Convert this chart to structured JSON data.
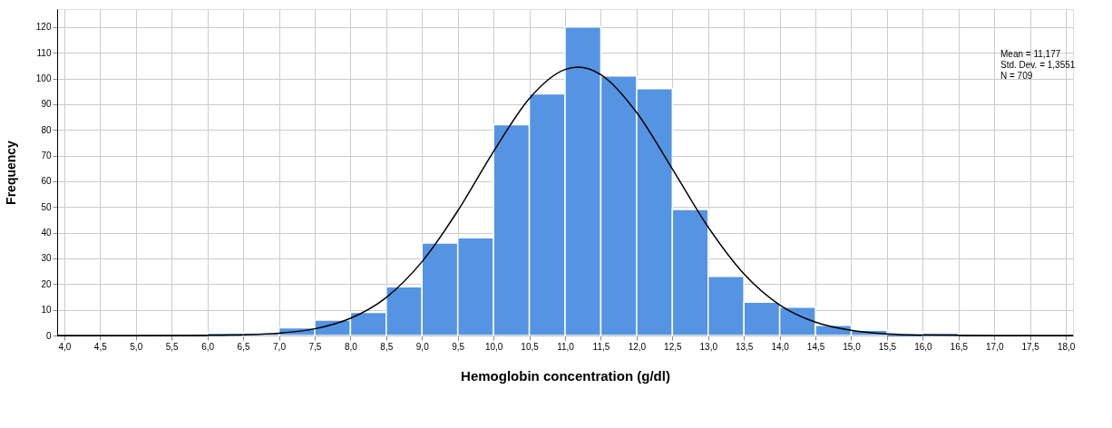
{
  "chart_data": {
    "type": "histogram",
    "xlabel": "Hemoglobin concentration (g/dl)",
    "ylabel": "Frequency",
    "bins": [
      6.0,
      6.5,
      7.0,
      7.5,
      8.0,
      8.5,
      9.0,
      9.5,
      10.0,
      10.5,
      11.0,
      11.5,
      12.0,
      12.5,
      13.0,
      13.5,
      14.0,
      14.5,
      15.0,
      15.5,
      16.0,
      16.5
    ],
    "values": [
      1,
      1,
      3,
      6,
      9,
      19,
      36,
      38,
      82,
      94,
      120,
      101,
      96,
      49,
      23,
      13,
      11,
      4,
      2,
      0,
      1
    ],
    "color": "#5594e2",
    "series": [
      {
        "type": "line",
        "color": "#000000",
        "x": [
          3.9,
          5,
          6,
          6.5,
          7,
          7.5,
          8,
          8.5,
          9,
          9.5,
          10,
          10.5,
          11,
          11.177,
          11.5,
          12,
          12.5,
          13,
          13.5,
          14,
          14.5,
          15,
          15.5,
          16,
          17,
          18.1
        ],
        "values": [
          0,
          0,
          0.1,
          0.3,
          0.9,
          2.6,
          6.7,
          14.8,
          28.7,
          48.5,
          71.6,
          92.2,
          103.5,
          104.4,
          101.5,
          86.8,
          64.8,
          42.2,
          24.0,
          11.9,
          5.2,
          2.0,
          0.6,
          0.2,
          0,
          0
        ]
      }
    ],
    "marker": "none",
    "line_style": "solid",
    "xlim": [
      3.9,
      18.1
    ],
    "xticks": [
      {
        "value": 4,
        "label": "4,0"
      },
      {
        "value": 4.5,
        "label": "4,5"
      },
      {
        "value": 5,
        "label": "5,0"
      },
      {
        "value": 5.5,
        "label": "5,5"
      },
      {
        "value": 6,
        "label": "6,0"
      },
      {
        "value": 6.5,
        "label": "6,5"
      },
      {
        "value": 7,
        "label": "7,0"
      },
      {
        "value": 7.5,
        "label": "7,5"
      },
      {
        "value": 8,
        "label": "8,0"
      },
      {
        "value": 8.5,
        "label": "8,5"
      },
      {
        "value": 9,
        "label": "9,0"
      },
      {
        "value": 9.5,
        "label": "9,5"
      },
      {
        "value": 10,
        "label": "10,0"
      },
      {
        "value": 10.5,
        "label": "10,5"
      },
      {
        "value": 11,
        "label": "11,0"
      },
      {
        "value": 11.5,
        "label": "11,5"
      },
      {
        "value": 12,
        "label": "12,0"
      },
      {
        "value": 12.5,
        "label": "12,5"
      },
      {
        "value": 13,
        "label": "13,0"
      },
      {
        "value": 13.5,
        "label": "13,5"
      },
      {
        "value": 14,
        "label": "14,0"
      },
      {
        "value": 14.5,
        "label": "14,5"
      },
      {
        "value": 15,
        "label": "15,0"
      },
      {
        "value": 15.5,
        "label": "15,5"
      },
      {
        "value": 16,
        "label": "16,0"
      },
      {
        "value": 16.5,
        "label": "16,5"
      },
      {
        "value": 17,
        "label": "17,0"
      },
      {
        "value": 17.5,
        "label": "17,5"
      },
      {
        "value": 18,
        "label": "18,0"
      }
    ],
    "ylim": [
      0,
      127
    ],
    "yticks": [
      0,
      10,
      20,
      30,
      40,
      50,
      60,
      70,
      80,
      90,
      100,
      110,
      120
    ],
    "grid": true,
    "annotations": [
      "Mean = 11,177",
      "Std. Dev. = 1,3551",
      "N = 709"
    ]
  }
}
